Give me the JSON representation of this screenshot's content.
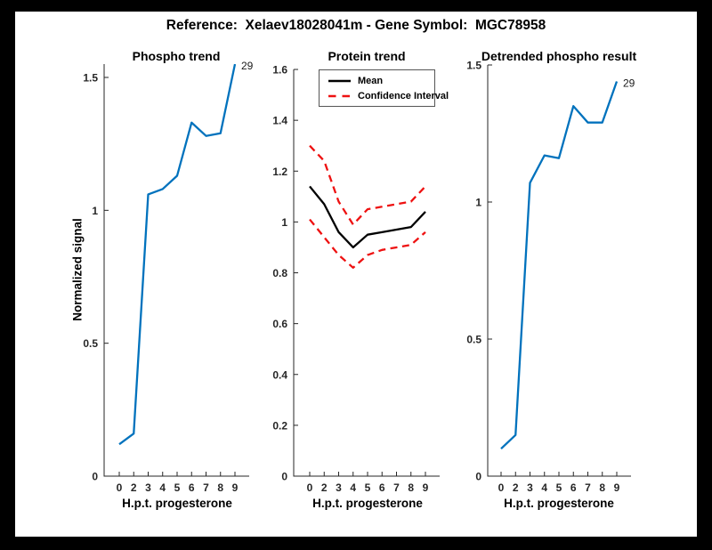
{
  "figure": {
    "title": "Reference:  Xelaev18028041m - Gene Symbol:  MGC78958"
  },
  "chart_data": [
    {
      "type": "line",
      "title": "Phospho trend",
      "xlabel": "H.p.t. progesterone",
      "ylabel": "Normalized signal",
      "categories": [
        "0",
        "2",
        "3",
        "4",
        "5",
        "6",
        "7",
        "8",
        "9"
      ],
      "values": [
        0.12,
        0.16,
        1.06,
        1.08,
        1.13,
        1.33,
        1.28,
        1.29,
        1.55
      ],
      "yticks": [
        0,
        0.5,
        1,
        1.5
      ],
      "ytick_labels": [
        "0",
        "0.5",
        "1",
        "1.5"
      ],
      "ylim": [
        0,
        1.55
      ],
      "line_color": "#0072BD",
      "end_label": "29",
      "grid": false
    },
    {
      "type": "line",
      "title": "Protein trend",
      "xlabel": "H.p.t. progesterone",
      "ylabel": "",
      "categories": [
        "0",
        "2",
        "3",
        "4",
        "5",
        "6",
        "7",
        "8",
        "9"
      ],
      "series": [
        {
          "name": "Mean",
          "style": "solid",
          "color": "#000000",
          "values": [
            1.14,
            1.07,
            0.96,
            0.9,
            0.95,
            0.96,
            0.97,
            0.98,
            1.04
          ]
        },
        {
          "name": "Confidence Interval upper",
          "style": "dashed",
          "color": "#EE1111",
          "values": [
            1.3,
            1.24,
            1.08,
            0.99,
            1.05,
            1.06,
            1.07,
            1.08,
            1.14
          ]
        },
        {
          "name": "Confidence Interval lower",
          "style": "dashed",
          "color": "#EE1111",
          "values": [
            1.01,
            0.94,
            0.87,
            0.82,
            0.87,
            0.89,
            0.9,
            0.91,
            0.96
          ]
        }
      ],
      "yticks": [
        0,
        0.2,
        0.4,
        0.6,
        0.8,
        1,
        1.2,
        1.4,
        1.6
      ],
      "ytick_labels": [
        "0",
        "0.2",
        "0.4",
        "0.6",
        "0.8",
        "1",
        "1.2",
        "1.4",
        "1.6"
      ],
      "ylim": [
        0,
        1.6
      ],
      "grid": false,
      "legend": {
        "position": "northwest",
        "entries": [
          {
            "label": "Mean"
          },
          {
            "label": "Confidence Interval"
          }
        ]
      }
    },
    {
      "type": "line",
      "title": "Detrended phospho result",
      "xlabel": "H.p.t. progesterone",
      "ylabel": "",
      "categories": [
        "0",
        "2",
        "3",
        "4",
        "5",
        "6",
        "7",
        "8",
        "9"
      ],
      "values": [
        0.1,
        0.15,
        1.07,
        1.17,
        1.16,
        1.35,
        1.29,
        1.29,
        1.44
      ],
      "yticks": [
        0,
        0.5,
        1,
        1.5
      ],
      "ytick_labels": [
        "0",
        "0.5",
        "1",
        "1.5"
      ],
      "ylim": [
        0,
        1.5
      ],
      "line_color": "#0072BD",
      "end_label": "29",
      "grid": false
    }
  ]
}
